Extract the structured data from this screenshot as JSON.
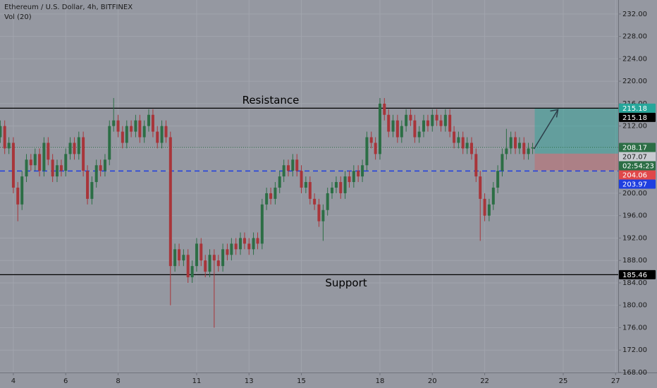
{
  "chart_data": {
    "type": "candlestick",
    "title": "Ethereum / U.S. Dollar, 4h, BITFINEX",
    "subtitle": "Vol (20)",
    "up_color": "#2c6e45",
    "down_color": "#a8353a",
    "x": [
      3.5,
      3.67,
      3.83,
      4,
      4.17,
      4.33,
      4.5,
      4.67,
      4.83,
      5,
      5.17,
      5.33,
      5.5,
      5.67,
      5.83,
      6,
      6.17,
      6.33,
      6.5,
      6.67,
      6.83,
      7,
      7.17,
      7.33,
      7.5,
      7.67,
      7.83,
      8,
      8.17,
      8.33,
      8.5,
      8.67,
      8.83,
      9,
      9.17,
      9.33,
      9.5,
      9.67,
      9.83,
      10,
      10.17,
      10.33,
      10.5,
      10.67,
      10.83,
      11,
      11.17,
      11.33,
      11.5,
      11.67,
      11.83,
      12,
      12.17,
      12.33,
      12.5,
      12.67,
      12.83,
      13,
      13.17,
      13.33,
      13.5,
      13.67,
      13.83,
      14,
      14.17,
      14.33,
      14.5,
      14.67,
      14.83,
      15,
      15.17,
      15.33,
      15.5,
      15.67,
      15.83,
      16,
      16.17,
      16.33,
      16.5,
      16.67,
      16.83,
      17,
      17.17,
      17.33,
      17.5,
      17.67,
      17.83,
      18,
      18.17,
      18.33,
      18.5,
      18.67,
      18.83,
      19,
      19.17,
      19.33,
      19.5,
      19.67,
      19.83,
      20,
      20.17,
      20.33,
      20.5,
      20.67,
      20.83,
      21,
      21.17,
      21.33,
      21.5,
      21.67,
      21.83,
      22,
      22.17,
      22.33,
      22.5,
      22.67,
      22.83,
      23,
      23.17,
      23.33,
      23.5,
      23.67,
      23.83
    ],
    "open": [
      210,
      212,
      208,
      209,
      201,
      198,
      203,
      206,
      205,
      207,
      204,
      209,
      206,
      203,
      205,
      204,
      207,
      209,
      207,
      210,
      204,
      199,
      202,
      205,
      204,
      206,
      212,
      213,
      211,
      209,
      212,
      211,
      213,
      210,
      212,
      214,
      211,
      209,
      212,
      210,
      187,
      190,
      188,
      189,
      185,
      187,
      191,
      188,
      186,
      189,
      188,
      187,
      190,
      189,
      191,
      190,
      192,
      191,
      190,
      192,
      191,
      198,
      200,
      199,
      201,
      203,
      205,
      204,
      206,
      204,
      201,
      202,
      199,
      198,
      195,
      197,
      200,
      201,
      202,
      200,
      203,
      202,
      204,
      203,
      205,
      210,
      209,
      207,
      216,
      214,
      211,
      213,
      210,
      212,
      214,
      213,
      210,
      211,
      213,
      212,
      214,
      213,
      212,
      214,
      211,
      209,
      210,
      208,
      209,
      207,
      203,
      199,
      196,
      198,
      201,
      204,
      207,
      208,
      210,
      208,
      209,
      207,
      208
    ],
    "high": [
      213,
      213,
      210,
      210,
      202,
      204,
      207,
      207,
      208,
      208,
      210,
      210,
      207,
      206,
      206,
      208,
      210,
      210,
      211,
      211,
      205,
      203,
      206,
      206,
      207,
      213,
      217,
      214,
      212,
      213,
      213,
      214,
      214,
      213,
      215,
      215,
      212,
      213,
      213,
      211,
      191,
      191,
      190,
      190,
      188,
      192,
      192,
      189,
      190,
      190,
      189,
      191,
      191,
      192,
      192,
      193,
      193,
      192,
      193,
      193,
      199,
      201,
      201,
      202,
      204,
      206,
      206,
      207,
      207,
      205,
      203,
      203,
      200,
      199,
      198,
      201,
      202,
      203,
      203,
      204,
      204,
      205,
      205,
      206,
      211,
      211,
      210,
      217,
      217,
      215,
      214,
      214,
      213,
      215,
      215,
      214,
      212,
      214,
      214,
      215,
      215,
      214,
      215,
      215,
      212,
      211,
      211,
      210,
      210,
      208,
      204,
      200,
      199,
      202,
      205,
      208,
      211.5,
      211,
      211,
      210,
      210,
      209,
      209
    ],
    "low": [
      209,
      207,
      207,
      200,
      195,
      197,
      202,
      204,
      204,
      203,
      203,
      205,
      202,
      202,
      203,
      203,
      206,
      206,
      206,
      203,
      198,
      198,
      201,
      203,
      203,
      205,
      211,
      210,
      208,
      208,
      210,
      210,
      209,
      209,
      211,
      210,
      208,
      208,
      209,
      180,
      186,
      187,
      187,
      184,
      184,
      186,
      187,
      185,
      185,
      176,
      186,
      186,
      188,
      188,
      189,
      189,
      190,
      189,
      189,
      190,
      190,
      197,
      198,
      198,
      200,
      202,
      203,
      203,
      203,
      200,
      200,
      198,
      197,
      194,
      191.5,
      196,
      199,
      200,
      199,
      199,
      201,
      201,
      202,
      202,
      204,
      208,
      206,
      206,
      213,
      210,
      210,
      209,
      209,
      211,
      212,
      209,
      209,
      210,
      211,
      211,
      212,
      211,
      211,
      210,
      208,
      208,
      207,
      207,
      206,
      202,
      191.5,
      195,
      195,
      197,
      200,
      203,
      206,
      207,
      207,
      207,
      206,
      206,
      207
    ],
    "close": [
      212,
      208,
      209,
      201,
      198,
      203,
      206,
      205,
      207,
      204,
      209,
      206,
      203,
      205,
      204,
      207,
      209,
      207,
      210,
      204,
      199,
      202,
      205,
      204,
      206,
      212,
      213,
      211,
      209,
      212,
      211,
      213,
      210,
      212,
      214,
      211,
      209,
      212,
      210,
      187,
      190,
      188,
      189,
      185,
      187,
      191,
      188,
      186,
      189,
      188,
      187,
      190,
      189,
      191,
      190,
      192,
      191,
      190,
      192,
      191,
      198,
      200,
      199,
      201,
      203,
      205,
      204,
      206,
      204,
      201,
      202,
      199,
      198,
      195,
      197,
      200,
      201,
      202,
      200,
      203,
      202,
      204,
      203,
      205,
      210,
      209,
      207,
      216,
      214,
      211,
      213,
      210,
      212,
      214,
      213,
      210,
      211,
      213,
      212,
      214,
      213,
      212,
      214,
      211,
      209,
      210,
      208,
      209,
      207,
      203,
      199,
      196,
      198,
      201,
      204,
      207,
      208,
      210,
      208,
      209,
      207,
      208,
      208.17
    ],
    "xlim": [
      3.49,
      27.1
    ],
    "xticks": [
      4,
      6,
      8,
      11,
      13,
      15,
      18,
      20,
      22,
      25,
      27
    ],
    "ylim": [
      168,
      234.5
    ],
    "yticks": [
      {
        "value": 168,
        "label": "168.00"
      },
      {
        "value": 172,
        "label": "172.00"
      },
      {
        "value": 176,
        "label": "176.00"
      },
      {
        "value": 180,
        "label": "180.00"
      },
      {
        "value": 184,
        "label": "184.00"
      },
      {
        "value": 188,
        "label": "188.00"
      },
      {
        "value": 192,
        "label": "192.00"
      },
      {
        "value": 196,
        "label": "196.00"
      },
      {
        "value": 200,
        "label": "200.00"
      },
      {
        "value": 204,
        "label": "204.00"
      },
      {
        "value": 208,
        "label": "208.00"
      },
      {
        "value": 212,
        "label": "212.00"
      },
      {
        "value": 216,
        "label": "216.00"
      },
      {
        "value": 220,
        "label": "220.00"
      },
      {
        "value": 224,
        "label": "224.00"
      },
      {
        "value": 228,
        "label": "228.00"
      },
      {
        "value": 232,
        "label": "232.00"
      }
    ],
    "grid": true,
    "levels": [
      {
        "name": "Resistance",
        "value": 215.18,
        "color": "#000000"
      },
      {
        "name": "Support",
        "value": 185.46,
        "color": "#000000"
      }
    ],
    "lines": [
      {
        "value": 203.97,
        "style": "dashed",
        "color": "#1f3fe0"
      }
    ],
    "countdown": "02:54:23",
    "position": {
      "target": 215.18,
      "entry": 207.07,
      "stop": 204.06,
      "target_color": "#26a69a",
      "stop_color": "#e0484a"
    }
  }
}
